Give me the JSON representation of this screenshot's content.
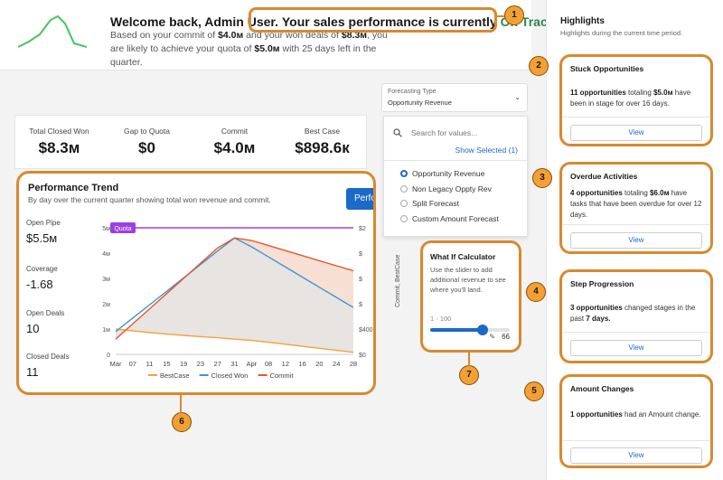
{
  "welcome": {
    "title_prefix": "Welcome back, Admin User.",
    "title_main": "Your sales performance is currently",
    "status": "On Track",
    "title_suffix": ".",
    "sub_1": "Based on your commit of",
    "commit": "$4.0м",
    "sub_2": "and your won deals of",
    "won": "$8.3м",
    "sub_3": ", you are likely to achieve your quota of",
    "quota": "$5.0м",
    "sub_4": "with 25 days left in the quarter."
  },
  "kpis": [
    {
      "label": "Total Closed Won",
      "value": "$8.3м"
    },
    {
      "label": "Gap to Quota",
      "value": "$0"
    },
    {
      "label": "Commit",
      "value": "$4.0м"
    },
    {
      "label": "Best Case",
      "value": "$898.6к"
    }
  ],
  "trend": {
    "title": "Performance Trend",
    "subtitle": "By day over the current quarter showing total won revenue and commit.",
    "button_label": "Perfo",
    "metrics": [
      {
        "label": "Open Pipe",
        "value": "$5.5м"
      },
      {
        "label": "Coverage",
        "value": "-1.68"
      },
      {
        "label": "Open Deals",
        "value": "10"
      },
      {
        "label": "Closed Deals",
        "value": "11"
      }
    ],
    "quota_label": "Quota"
  },
  "chart_data": {
    "type": "line",
    "categories": [
      "Mar",
      "07",
      "11",
      "15",
      "19",
      "23",
      "27",
      "31",
      "Apr",
      "08",
      "12",
      "16",
      "20",
      "24",
      "28"
    ],
    "y_ticks": [
      "0",
      "1м",
      "2м",
      "3м",
      "4м",
      "5м"
    ],
    "y2_ticks": [
      "$0",
      "$400",
      "$",
      "$",
      "$",
      "$2"
    ],
    "ylim": [
      0,
      5
    ],
    "quota": 5,
    "series": [
      {
        "name": "BestCase",
        "color": "#f4a13a",
        "values": [
          1.0,
          0.93,
          0.86,
          0.8,
          0.75,
          0.7,
          0.66,
          0.6,
          0.55,
          0.48,
          0.4,
          0.32,
          0.24,
          0.16,
          0.08
        ]
      },
      {
        "name": "Closed Won",
        "color": "#3b97d3",
        "values": [
          0.9,
          1.43,
          1.96,
          2.49,
          3.02,
          3.55,
          4.08,
          4.6,
          4.25,
          3.85,
          3.45,
          3.05,
          2.65,
          2.25,
          1.85
        ]
      },
      {
        "name": "Commit",
        "color": "#e4572e",
        "values": [
          0.6,
          1.2,
          1.8,
          2.4,
          3.0,
          3.6,
          4.2,
          4.6,
          4.5,
          4.3,
          4.1,
          3.9,
          3.7,
          3.5,
          3.3
        ]
      }
    ],
    "legend_position": "bottom",
    "grid": false
  },
  "forecast": {
    "label": "Forecasting Type",
    "value": "Opportunity Revenue",
    "search_placeholder": "Search for values...",
    "show_selected": "Show Selected (1)",
    "options": [
      {
        "label": "Opportunity Revenue",
        "selected": true
      },
      {
        "label": "Non Legacy Oppty Rev",
        "selected": false
      },
      {
        "label": "Split Forecast",
        "selected": false
      },
      {
        "label": "Custom Amount Forecast",
        "selected": false
      }
    ]
  },
  "side_axis_label": "Commit, BestCase",
  "whatif": {
    "title": "What If Calculator",
    "desc": "Use the slider to add additional revenue to see where you'll land.",
    "range": "1 - 100",
    "value": "66",
    "slider_value": 66
  },
  "highlights": {
    "title": "Highlights",
    "subtitle": "Highlights during the current time period.",
    "view_label": "View",
    "cards": [
      {
        "title": "Stuck Opportunities",
        "bold": "11 opportunities",
        "mid": "totaling",
        "amount": "$5.0м",
        "rest": "have been in stage for over 16 days."
      },
      {
        "title": "Overdue Activities",
        "bold": "4 opportunities",
        "mid": "totaling",
        "amount": "$6.0м",
        "rest": "have tasks that have been overdue for over 12 days."
      },
      {
        "title": "Step Progression",
        "bold": "3 opportunities",
        "mid": "changed stages in the past",
        "amount": "7 days.",
        "rest": ""
      },
      {
        "title": "Amount Changes",
        "bold": "1 opportunities",
        "mid": "had an Amount change.",
        "amount": "",
        "rest": ""
      }
    ]
  },
  "badges": [
    "1",
    "2",
    "3",
    "4",
    "5",
    "6",
    "7"
  ]
}
